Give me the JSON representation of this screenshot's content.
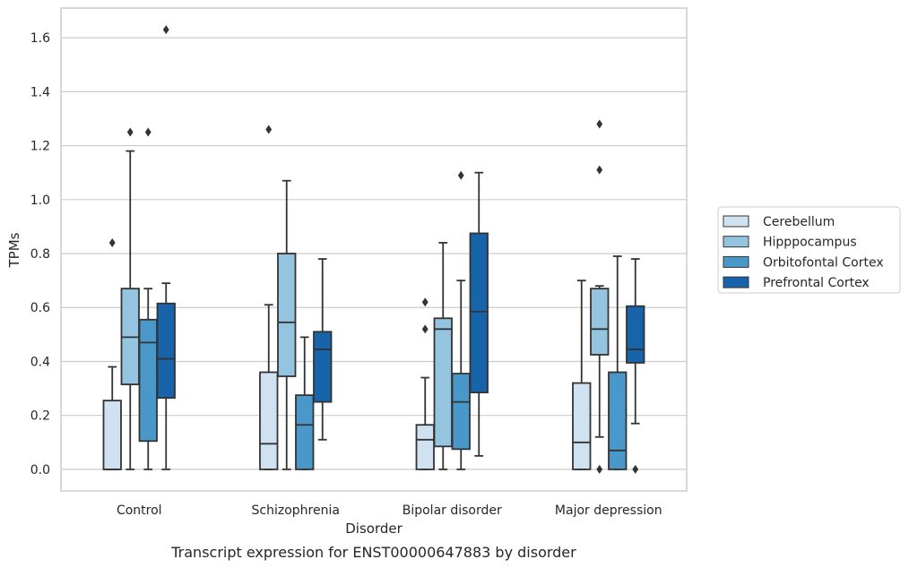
{
  "chart_data": {
    "type": "box",
    "caption": "Transcript expression for ENST00000647883 by disorder",
    "xlabel": "Disorder",
    "ylabel": "TPMs",
    "ylim": [
      -0.08,
      1.71
    ],
    "yticks": [
      0.0,
      0.2,
      0.4,
      0.6,
      0.8,
      1.0,
      1.2,
      1.4,
      1.6
    ],
    "ytick_labels": [
      "0.0",
      "0.2",
      "0.4",
      "0.6",
      "0.8",
      "1.0",
      "1.2",
      "1.4",
      "1.6"
    ],
    "grid": "horizontal",
    "legend_position": "right",
    "categories": [
      "Control",
      "Schizophrenia",
      "Bipolar disorder",
      "Major depression"
    ],
    "series": [
      {
        "name": "Cerebellum",
        "color": "#d0e1f2",
        "boxes": [
          {
            "whislo": 0.0,
            "q1": 0.0,
            "med": 0.0,
            "q3": 0.255,
            "whishi": 0.38,
            "fliers": [
              0.84
            ]
          },
          {
            "whislo": 0.0,
            "q1": 0.0,
            "med": 0.095,
            "q3": 0.36,
            "whishi": 0.61,
            "fliers": [
              1.26
            ]
          },
          {
            "whislo": 0.0,
            "q1": 0.0,
            "med": 0.11,
            "q3": 0.165,
            "whishi": 0.34,
            "fliers": [
              0.52,
              0.62
            ]
          },
          {
            "whislo": 0.0,
            "q1": 0.0,
            "med": 0.1,
            "q3": 0.32,
            "whishi": 0.7,
            "fliers": []
          }
        ]
      },
      {
        "name": "Hipppocampus",
        "color": "#94c4df",
        "boxes": [
          {
            "whislo": 0.0,
            "q1": 0.315,
            "med": 0.49,
            "q3": 0.67,
            "whishi": 1.18,
            "fliers": [
              1.25
            ]
          },
          {
            "whislo": 0.0,
            "q1": 0.345,
            "med": 0.545,
            "q3": 0.8,
            "whishi": 1.07,
            "fliers": []
          },
          {
            "whislo": 0.0,
            "q1": 0.085,
            "med": 0.52,
            "q3": 0.56,
            "whishi": 0.84,
            "fliers": []
          },
          {
            "whislo": 0.12,
            "q1": 0.425,
            "med": 0.52,
            "q3": 0.67,
            "whishi": 0.68,
            "fliers": [
              0.0,
              1.11,
              1.28
            ]
          }
        ]
      },
      {
        "name": "Orbitofontal Cortex",
        "color": "#4a98c9",
        "boxes": [
          {
            "whislo": 0.0,
            "q1": 0.105,
            "med": 0.47,
            "q3": 0.555,
            "whishi": 0.67,
            "fliers": [
              1.25
            ]
          },
          {
            "whislo": 0.0,
            "q1": 0.0,
            "med": 0.165,
            "q3": 0.275,
            "whishi": 0.49,
            "fliers": []
          },
          {
            "whislo": 0.0,
            "q1": 0.075,
            "med": 0.25,
            "q3": 0.355,
            "whishi": 0.7,
            "fliers": [
              1.09
            ]
          },
          {
            "whislo": 0.0,
            "q1": 0.0,
            "med": 0.07,
            "q3": 0.36,
            "whishi": 0.79,
            "fliers": []
          }
        ]
      },
      {
        "name": "Prefrontal Cortex",
        "color": "#1764ab",
        "boxes": [
          {
            "whislo": 0.0,
            "q1": 0.265,
            "med": 0.41,
            "q3": 0.615,
            "whishi": 0.69,
            "fliers": [
              1.63
            ]
          },
          {
            "whislo": 0.11,
            "q1": 0.25,
            "med": 0.445,
            "q3": 0.51,
            "whishi": 0.78,
            "fliers": []
          },
          {
            "whislo": 0.05,
            "q1": 0.285,
            "med": 0.585,
            "q3": 0.875,
            "whishi": 1.1,
            "fliers": []
          },
          {
            "whislo": 0.17,
            "q1": 0.395,
            "med": 0.445,
            "q3": 0.605,
            "whishi": 0.78,
            "fliers": [
              0.0
            ]
          }
        ]
      }
    ]
  }
}
